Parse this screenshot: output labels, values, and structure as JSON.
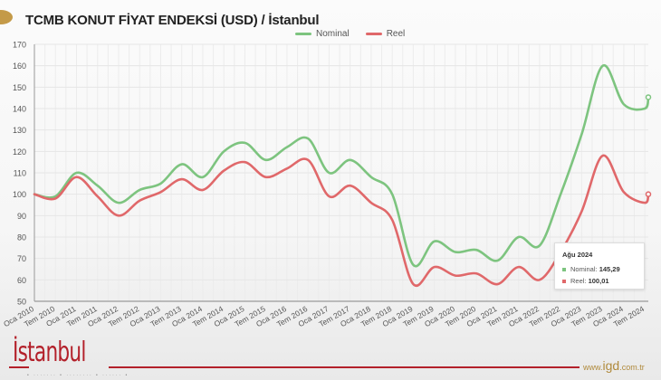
{
  "header": {
    "title": "TCMB KONUT FİYAT ENDEKSİ (USD) / İstanbul"
  },
  "legend": [
    {
      "label": "Nominal",
      "color": "#7dc47f"
    },
    {
      "label": "Reel",
      "color": "#e0686a"
    }
  ],
  "tooltip": {
    "title": "Ağu 2024",
    "rows": [
      {
        "label": "Nominal: ",
        "value": "145,29",
        "color": "#7dc47f"
      },
      {
        "label": "Reel: ",
        "value": "100,01",
        "color": "#e0686a"
      }
    ]
  },
  "footer": {
    "brand": "İstanbul",
    "dots": "•  ·······  •  ········  •  ······  •",
    "url_prefix": "www.",
    "url_main": "igd",
    "url_suffix": ".com.tr"
  },
  "chart_data": {
    "type": "line",
    "title": "TCMB KONUT FİYAT ENDEKSİ (USD) / İstanbul",
    "xlabel": "",
    "ylabel": "",
    "ylim": [
      50,
      170
    ],
    "yticks": [
      50,
      60,
      70,
      80,
      90,
      100,
      110,
      120,
      130,
      140,
      150,
      160,
      170
    ],
    "grid": true,
    "legend_position": "top-right",
    "xticks": [
      "Oca 2010",
      "Tem 2010",
      "Oca 2011",
      "Tem 2011",
      "Oca 2012",
      "Tem 2012",
      "Oca 2013",
      "Tem 2013",
      "Oca 2014",
      "Tem 2014",
      "Oca 2015",
      "Tem 2015",
      "Oca 2016",
      "Tem 2016",
      "Oca 2017",
      "Tem 2017",
      "Oca 2018",
      "Tem 2018",
      "Oca 2019",
      "Tem 2019",
      "Oca 2020",
      "Tem 2020",
      "Oca 2021",
      "Tem 2021",
      "Oca 2022",
      "Tem 2022",
      "Oca 2023",
      "Tem 2023",
      "Oca 2024",
      "Tem 2024"
    ],
    "x": [
      "Oca 2010",
      "Tem 2010",
      "Oca 2011",
      "Tem 2011",
      "Oca 2012",
      "Tem 2012",
      "Oca 2013",
      "Tem 2013",
      "Oca 2014",
      "Tem 2014",
      "Oca 2015",
      "Tem 2015",
      "Oca 2016",
      "Tem 2016",
      "Oca 2017",
      "Tem 2017",
      "Oca 2018",
      "Tem 2018",
      "Oca 2019",
      "Tem 2019",
      "Oca 2020",
      "Tem 2020",
      "Oca 2021",
      "Tem 2021",
      "Oca 2022",
      "Tem 2022",
      "Oca 2023",
      "Tem 2023",
      "Oca 2024",
      "Tem 2024",
      "Ağu 2024"
    ],
    "series": [
      {
        "name": "Nominal",
        "color": "#7dc47f",
        "values": [
          100,
          99,
          110,
          104,
          96,
          102,
          105,
          114,
          108,
          120,
          124,
          116,
          122,
          126,
          110,
          116,
          108,
          100,
          67,
          78,
          73,
          74,
          69,
          80,
          76,
          100,
          128,
          160,
          142,
          140,
          145.29
        ]
      },
      {
        "name": "Reel",
        "color": "#e0686a",
        "values": [
          100,
          98,
          108,
          99,
          90,
          97,
          101,
          107,
          102,
          111,
          115,
          108,
          112,
          116,
          99,
          104,
          96,
          88,
          58,
          66,
          62,
          63,
          58,
          66,
          60,
          73,
          92,
          118,
          101,
          96,
          100.01
        ]
      }
    ]
  }
}
